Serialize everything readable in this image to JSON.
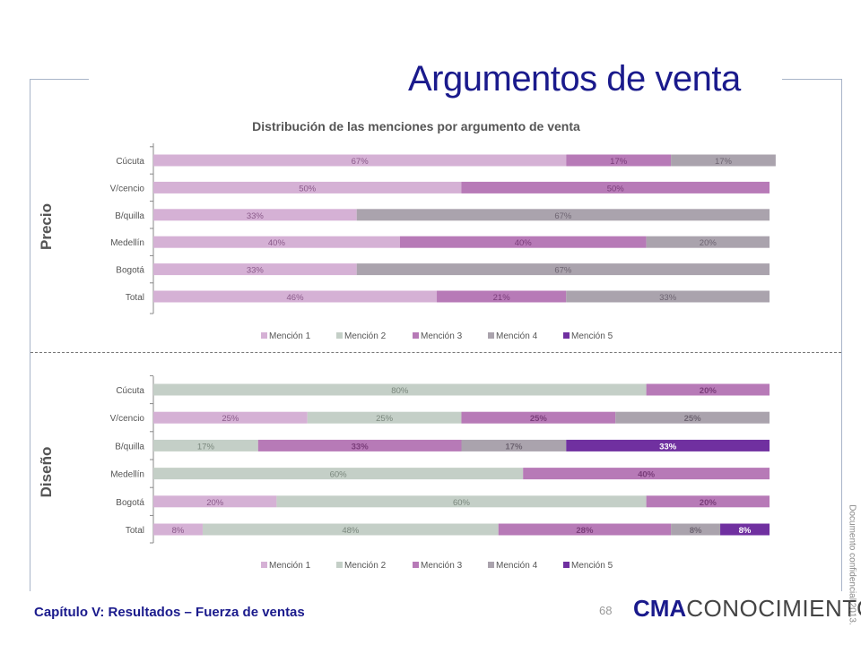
{
  "page": {
    "title": "Argumentos de venta",
    "footer_title": "Capítulo V: Resultados – Fuerza de ventas",
    "page_number": "68",
    "logo_bold": "CMA",
    "logo_rest": "CONOCIMIENTO",
    "confidential": "Documento confidencial 2013."
  },
  "colors": {
    "title": "#1a1a8c",
    "mencion_1": "#d5b1d5",
    "mencion_2": "#c4cfc7",
    "mencion_3": "#b77ab7",
    "mencion_4": "#aaa3ad",
    "mencion_5": "#7030a0"
  },
  "chart_data": [
    {
      "type": "bar",
      "orientation": "horizontal",
      "stacked": "percent",
      "section_label": "Precio",
      "title": "Distribución de las menciones por argumento de venta",
      "categories": [
        "Cúcuta",
        "V/cencio",
        "B/quilla",
        "Medellín",
        "Bogotá",
        "Total"
      ],
      "series": [
        {
          "name": "Mención 1",
          "values": [
            67,
            50,
            33,
            40,
            33,
            46
          ]
        },
        {
          "name": "Mención 2",
          "values": [
            0,
            0,
            0,
            0,
            0,
            0
          ]
        },
        {
          "name": "Mención 3",
          "values": [
            17,
            50,
            0,
            40,
            0,
            21
          ]
        },
        {
          "name": "Mención 4",
          "values": [
            17,
            0,
            67,
            20,
            67,
            33
          ]
        },
        {
          "name": "Mención 5",
          "values": [
            0,
            0,
            0,
            0,
            0,
            0
          ]
        }
      ],
      "xlim": [
        0,
        100
      ],
      "legend": "bottom",
      "grid": false
    },
    {
      "type": "bar",
      "orientation": "horizontal",
      "stacked": "percent",
      "section_label": "Diseño",
      "title": "",
      "categories": [
        "Cúcuta",
        "V/cencio",
        "B/quilla",
        "Medellín",
        "Bogotá",
        "Total"
      ],
      "series": [
        {
          "name": "Mención 1",
          "values": [
            0,
            25,
            0,
            0,
            20,
            8
          ]
        },
        {
          "name": "Mención 2",
          "values": [
            80,
            25,
            17,
            60,
            60,
            48
          ]
        },
        {
          "name": "Mención 3",
          "values": [
            20,
            25,
            33,
            40,
            20,
            28
          ]
        },
        {
          "name": "Mención 4",
          "values": [
            0,
            25,
            17,
            0,
            0,
            8
          ]
        },
        {
          "name": "Mención 5",
          "values": [
            0,
            0,
            33,
            0,
            0,
            8
          ]
        }
      ],
      "xlim": [
        0,
        100
      ],
      "legend": "bottom",
      "grid": false
    }
  ]
}
